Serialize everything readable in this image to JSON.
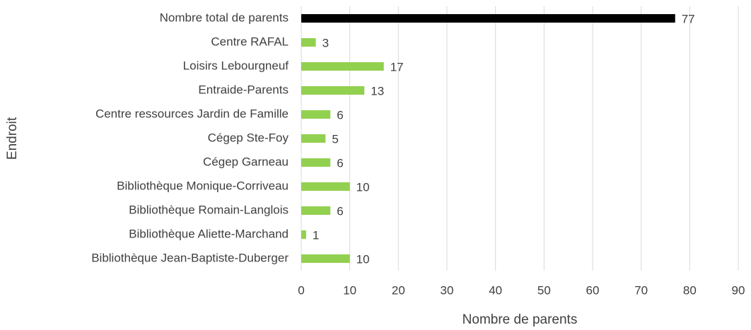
{
  "chart_data": {
    "type": "barh",
    "xlabel": "Nombre de parents",
    "ylabel": "Endroit",
    "categories": [
      "Nombre total de parents",
      "Centre RAFAL",
      "Loisirs Lebourgneuf",
      "Entraide-Parents",
      "Centre ressources Jardin de Famille",
      "Cégep Ste-Foy",
      "Cégep Garneau",
      "Bibliothèque Monique-Corriveau",
      "Bibliothèque Romain-Langlois",
      "Bibliothèque Aliette-Marchand",
      "Bibliothèque Jean-Baptiste-Duberger"
    ],
    "values": [
      77,
      3,
      17,
      13,
      6,
      5,
      6,
      10,
      6,
      1,
      10
    ],
    "colors": [
      "#000000",
      "#92d050",
      "#92d050",
      "#92d050",
      "#92d050",
      "#92d050",
      "#92d050",
      "#92d050",
      "#92d050",
      "#92d050",
      "#92d050"
    ],
    "xlim": [
      0,
      90
    ],
    "xticks": [
      0,
      10,
      20,
      30,
      40,
      50,
      60,
      70,
      80,
      90
    ],
    "grid": true
  }
}
